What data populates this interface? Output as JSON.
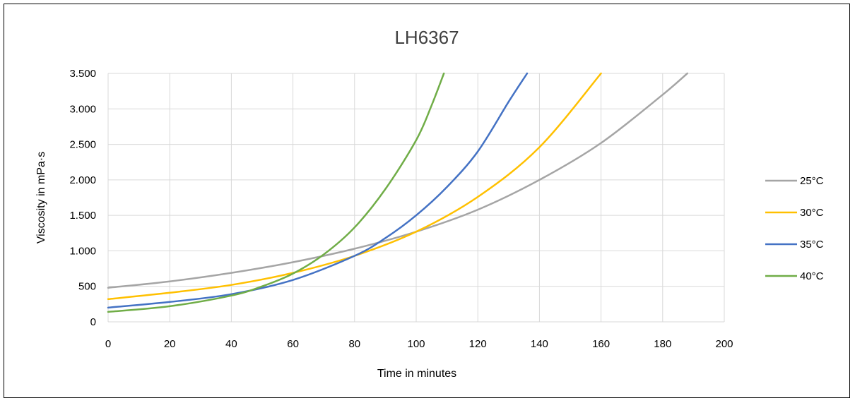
{
  "chart_data": {
    "type": "line",
    "title": "LH6367",
    "xlabel": "Time in minutes",
    "ylabel": "Viscosity in mPa·s",
    "xlim": [
      0,
      200
    ],
    "ylim": [
      0,
      3500
    ],
    "x_ticks": [
      0,
      20,
      40,
      60,
      80,
      100,
      120,
      140,
      160,
      180,
      200
    ],
    "y_ticks": [
      0,
      500,
      1000,
      1500,
      2000,
      2500,
      3000,
      3500
    ],
    "y_tick_labels": [
      "0",
      "500",
      "1.000",
      "1.500",
      "2.000",
      "2.500",
      "3.000",
      "3.500"
    ],
    "grid": true,
    "legend_position": "right",
    "series": [
      {
        "name": "25°C",
        "color": "#A5A5A5",
        "x": [
          0,
          20,
          40,
          60,
          80,
          100,
          120,
          140,
          160,
          180,
          188
        ],
        "values": [
          480,
          570,
          690,
          840,
          1030,
          1270,
          1580,
          2000,
          2520,
          3200,
          3500
        ]
      },
      {
        "name": "30°C",
        "color": "#FFC000",
        "x": [
          0,
          20,
          40,
          60,
          80,
          100,
          120,
          140,
          160
        ],
        "values": [
          320,
          410,
          520,
          690,
          930,
          1270,
          1760,
          2460,
          3500
        ]
      },
      {
        "name": "35°C",
        "color": "#4472C4",
        "x": [
          0,
          20,
          40,
          60,
          80,
          90,
          100,
          110,
          120,
          130,
          136
        ],
        "values": [
          200,
          280,
          390,
          590,
          930,
          1180,
          1500,
          1900,
          2400,
          3100,
          3500
        ]
      },
      {
        "name": "40°C",
        "color": "#70AD47",
        "x": [
          0,
          20,
          40,
          50,
          60,
          70,
          80,
          90,
          100,
          105,
          109
        ],
        "values": [
          140,
          220,
          370,
          500,
          680,
          950,
          1330,
          1870,
          2560,
          3050,
          3500
        ]
      }
    ]
  }
}
